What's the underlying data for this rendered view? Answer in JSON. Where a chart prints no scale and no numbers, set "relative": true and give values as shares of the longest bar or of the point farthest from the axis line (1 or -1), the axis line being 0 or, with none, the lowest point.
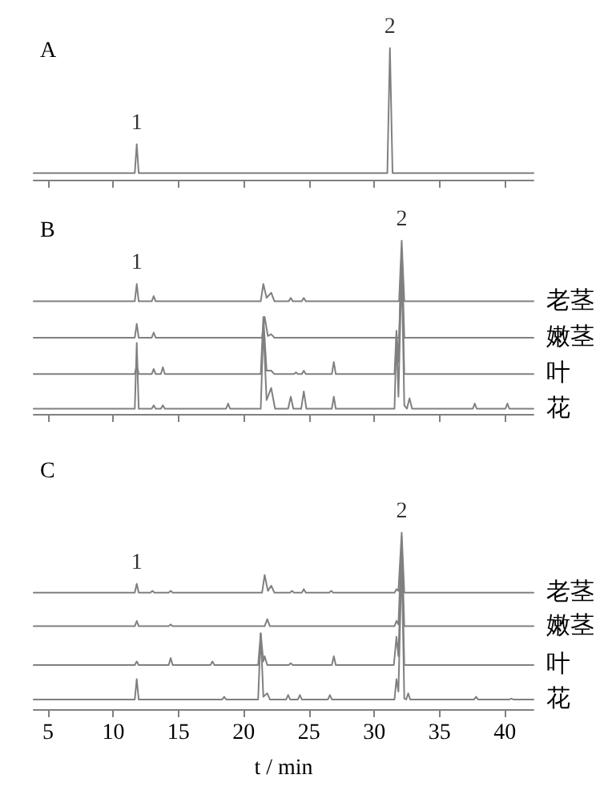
{
  "chart_data": [
    {
      "type": "line",
      "title": "A",
      "relative": true,
      "xlim": [
        3.9,
        42.2
      ],
      "xticks": [
        5,
        10,
        15,
        20,
        25,
        30,
        35,
        40
      ],
      "tick_labels": false,
      "grid": false,
      "marker": "none",
      "line_style": "solid",
      "annotations": [
        {
          "text": "1",
          "x": 11.8,
          "y": 0.27
        },
        {
          "text": "2",
          "x": 31.2,
          "y": 1
        }
      ],
      "series": [
        {
          "color": "#808080",
          "x": [
            3.9,
            11.65,
            11.8,
            11.95,
            31.0,
            31.2,
            31.4,
            42.2
          ],
          "values": [
            0.05,
            0.05,
            0.27,
            0.05,
            0.05,
            1,
            0.05,
            0.05
          ]
        }
      ]
    },
    {
      "type": "line",
      "title": "B",
      "relative": true,
      "xlim": [
        3.9,
        42.2
      ],
      "xticks": [
        5,
        10,
        15,
        20,
        25,
        30,
        35,
        40
      ],
      "tick_labels": false,
      "grid": false,
      "marker": "none",
      "line_style": "solid",
      "annotations": [
        {
          "text": "1",
          "x": 11.8,
          "y": 0.75
        },
        {
          "text": "2",
          "x": 32.1,
          "y": 1
        }
      ],
      "series": [
        {
          "name": "老茎",
          "color": "#808080",
          "x": [
            3.9,
            11.65,
            11.8,
            11.95,
            12.95,
            13.1,
            13.25,
            21.3,
            21.5,
            21.75,
            22.1,
            22.35,
            23.45,
            23.6,
            23.75,
            24.45,
            24.6,
            24.75,
            31.9,
            32.1,
            32.3,
            42.2
          ],
          "values": [
            0.65,
            0.65,
            0.75,
            0.65,
            0.65,
            0.68,
            0.65,
            0.65,
            0.75,
            0.67,
            0.7,
            0.65,
            0.65,
            0.67,
            0.65,
            0.65,
            0.67,
            0.65,
            0.65,
            1,
            0.65,
            0.65
          ]
        },
        {
          "name": "嫩茎",
          "color": "#808080",
          "x": [
            3.9,
            11.65,
            11.8,
            11.95,
            12.95,
            13.1,
            13.25,
            21.4,
            21.6,
            21.85,
            22.1,
            22.35,
            31.9,
            32.1,
            32.3,
            42.2
          ],
          "values": [
            0.44,
            0.44,
            0.52,
            0.44,
            0.44,
            0.47,
            0.44,
            0.44,
            0.56,
            0.45,
            0.46,
            0.44,
            0.44,
            0.95,
            0.44,
            0.44
          ]
        },
        {
          "name": "叶",
          "color": "#808080",
          "x": [
            3.9,
            11.65,
            11.8,
            11.95,
            12.95,
            13.1,
            13.25,
            13.65,
            13.8,
            13.95,
            21.3,
            21.5,
            21.75,
            22.1,
            22.35,
            23.85,
            24.0,
            24.15,
            24.45,
            24.6,
            24.75,
            26.75,
            26.9,
            27.05,
            31.55,
            31.7,
            31.85,
            32.1,
            32.3,
            42.2
          ],
          "values": [
            0.23,
            0.23,
            0.28,
            0.23,
            0.23,
            0.26,
            0.23,
            0.23,
            0.27,
            0.23,
            0.23,
            0.56,
            0.25,
            0.25,
            0.23,
            0.23,
            0.24,
            0.23,
            0.23,
            0.25,
            0.23,
            0.23,
            0.3,
            0.23,
            0.23,
            0.48,
            0.3,
            0.9,
            0.23,
            0.23
          ]
        },
        {
          "name": "花",
          "color": "#808080",
          "x": [
            3.9,
            11.65,
            11.8,
            11.95,
            12.95,
            13.1,
            13.25,
            13.65,
            13.8,
            13.95,
            18.65,
            18.8,
            18.95,
            21.3,
            21.5,
            21.75,
            22.1,
            22.4,
            23.4,
            23.6,
            23.8,
            24.4,
            24.6,
            24.8,
            26.75,
            26.9,
            27.05,
            31.55,
            31.7,
            31.85,
            32.1,
            32.3,
            32.5,
            32.7,
            32.9,
            37.55,
            37.7,
            37.85,
            40.05,
            40.2,
            40.35,
            42.2
          ],
          "values": [
            0.03,
            0.03,
            0.41,
            0.03,
            0.03,
            0.05,
            0.03,
            0.03,
            0.05,
            0.03,
            0.03,
            0.06,
            0.03,
            0.03,
            0.5,
            0.08,
            0.15,
            0.03,
            0.03,
            0.1,
            0.03,
            0.03,
            0.13,
            0.03,
            0.03,
            0.1,
            0.03,
            0.03,
            0.45,
            0.1,
            0.85,
            0.05,
            0.03,
            0.09,
            0.03,
            0.03,
            0.06,
            0.03,
            0.03,
            0.06,
            0.03,
            0.03
          ]
        }
      ]
    },
    {
      "type": "line",
      "title": "C",
      "xlabel": "t / min",
      "relative": true,
      "xlim": [
        3.9,
        42.2
      ],
      "xticks": [
        5,
        10,
        15,
        20,
        25,
        30,
        35,
        40
      ],
      "tick_labels": "x",
      "grid": false,
      "marker": "none",
      "line_style": "solid",
      "annotations": [
        {
          "text": "1",
          "x": 11.8,
          "y": 0.71
        },
        {
          "text": "2",
          "x": 32.1,
          "y": 1
        }
      ],
      "series": [
        {
          "name": "老茎",
          "color": "#808080",
          "x": [
            3.9,
            11.65,
            11.8,
            11.95,
            12.85,
            13.0,
            13.15,
            14.25,
            14.4,
            14.55,
            21.4,
            21.6,
            21.85,
            22.1,
            22.35,
            23.55,
            23.7,
            23.85,
            24.45,
            24.6,
            24.75,
            26.55,
            26.7,
            26.85,
            31.55,
            31.7,
            31.85,
            32.1,
            32.3,
            42.2
          ],
          "values": [
            0.66,
            0.66,
            0.71,
            0.66,
            0.66,
            0.67,
            0.66,
            0.66,
            0.67,
            0.66,
            0.66,
            0.76,
            0.67,
            0.7,
            0.66,
            0.66,
            0.67,
            0.66,
            0.66,
            0.68,
            0.66,
            0.66,
            0.67,
            0.66,
            0.66,
            0.68,
            0.67,
            1,
            0.66,
            0.66
          ]
        },
        {
          "name": "嫩茎",
          "color": "#808080",
          "x": [
            3.9,
            11.65,
            11.8,
            11.95,
            14.25,
            14.4,
            14.55,
            21.6,
            21.8,
            22.0,
            31.55,
            31.7,
            31.85,
            32.1,
            32.3,
            42.2
          ],
          "values": [
            0.47,
            0.47,
            0.5,
            0.47,
            0.47,
            0.48,
            0.47,
            0.47,
            0.51,
            0.47,
            0.47,
            0.5,
            0.48,
            0.95,
            0.47,
            0.47
          ]
        },
        {
          "name": "叶",
          "color": "#808080",
          "x": [
            3.9,
            11.65,
            11.8,
            11.95,
            14.25,
            14.4,
            14.55,
            17.45,
            17.6,
            17.75,
            21.1,
            21.3,
            21.5,
            21.6,
            21.8,
            23.45,
            23.6,
            23.75,
            26.75,
            26.9,
            27.05,
            31.5,
            31.7,
            31.85,
            32.1,
            32.3,
            42.2
          ],
          "values": [
            0.25,
            0.25,
            0.27,
            0.25,
            0.25,
            0.29,
            0.25,
            0.25,
            0.27,
            0.25,
            0.25,
            0.43,
            0.27,
            0.3,
            0.25,
            0.25,
            0.26,
            0.25,
            0.25,
            0.3,
            0.25,
            0.25,
            0.41,
            0.3,
            0.9,
            0.25,
            0.25
          ]
        },
        {
          "name": "花",
          "color": "#808080",
          "x": [
            3.9,
            11.65,
            11.8,
            11.95,
            18.35,
            18.5,
            18.65,
            21.1,
            21.3,
            21.5,
            21.8,
            22.0,
            23.25,
            23.4,
            23.55,
            24.15,
            24.3,
            24.45,
            26.45,
            26.6,
            26.75,
            31.55,
            31.7,
            31.85,
            32.1,
            32.3,
            32.45,
            32.6,
            32.75,
            37.65,
            37.8,
            37.95,
            40.35,
            40.5,
            40.65,
            42.2
          ],
          "values": [
            0.055,
            0.055,
            0.17,
            0.055,
            0.055,
            0.07,
            0.055,
            0.055,
            0.43,
            0.07,
            0.09,
            0.055,
            0.055,
            0.08,
            0.055,
            0.055,
            0.08,
            0.055,
            0.055,
            0.08,
            0.055,
            0.055,
            0.17,
            0.1,
            0.85,
            0.06,
            0.055,
            0.09,
            0.055,
            0.055,
            0.07,
            0.055,
            0.055,
            0.06,
            0.055,
            0.055
          ]
        }
      ]
    }
  ]
}
